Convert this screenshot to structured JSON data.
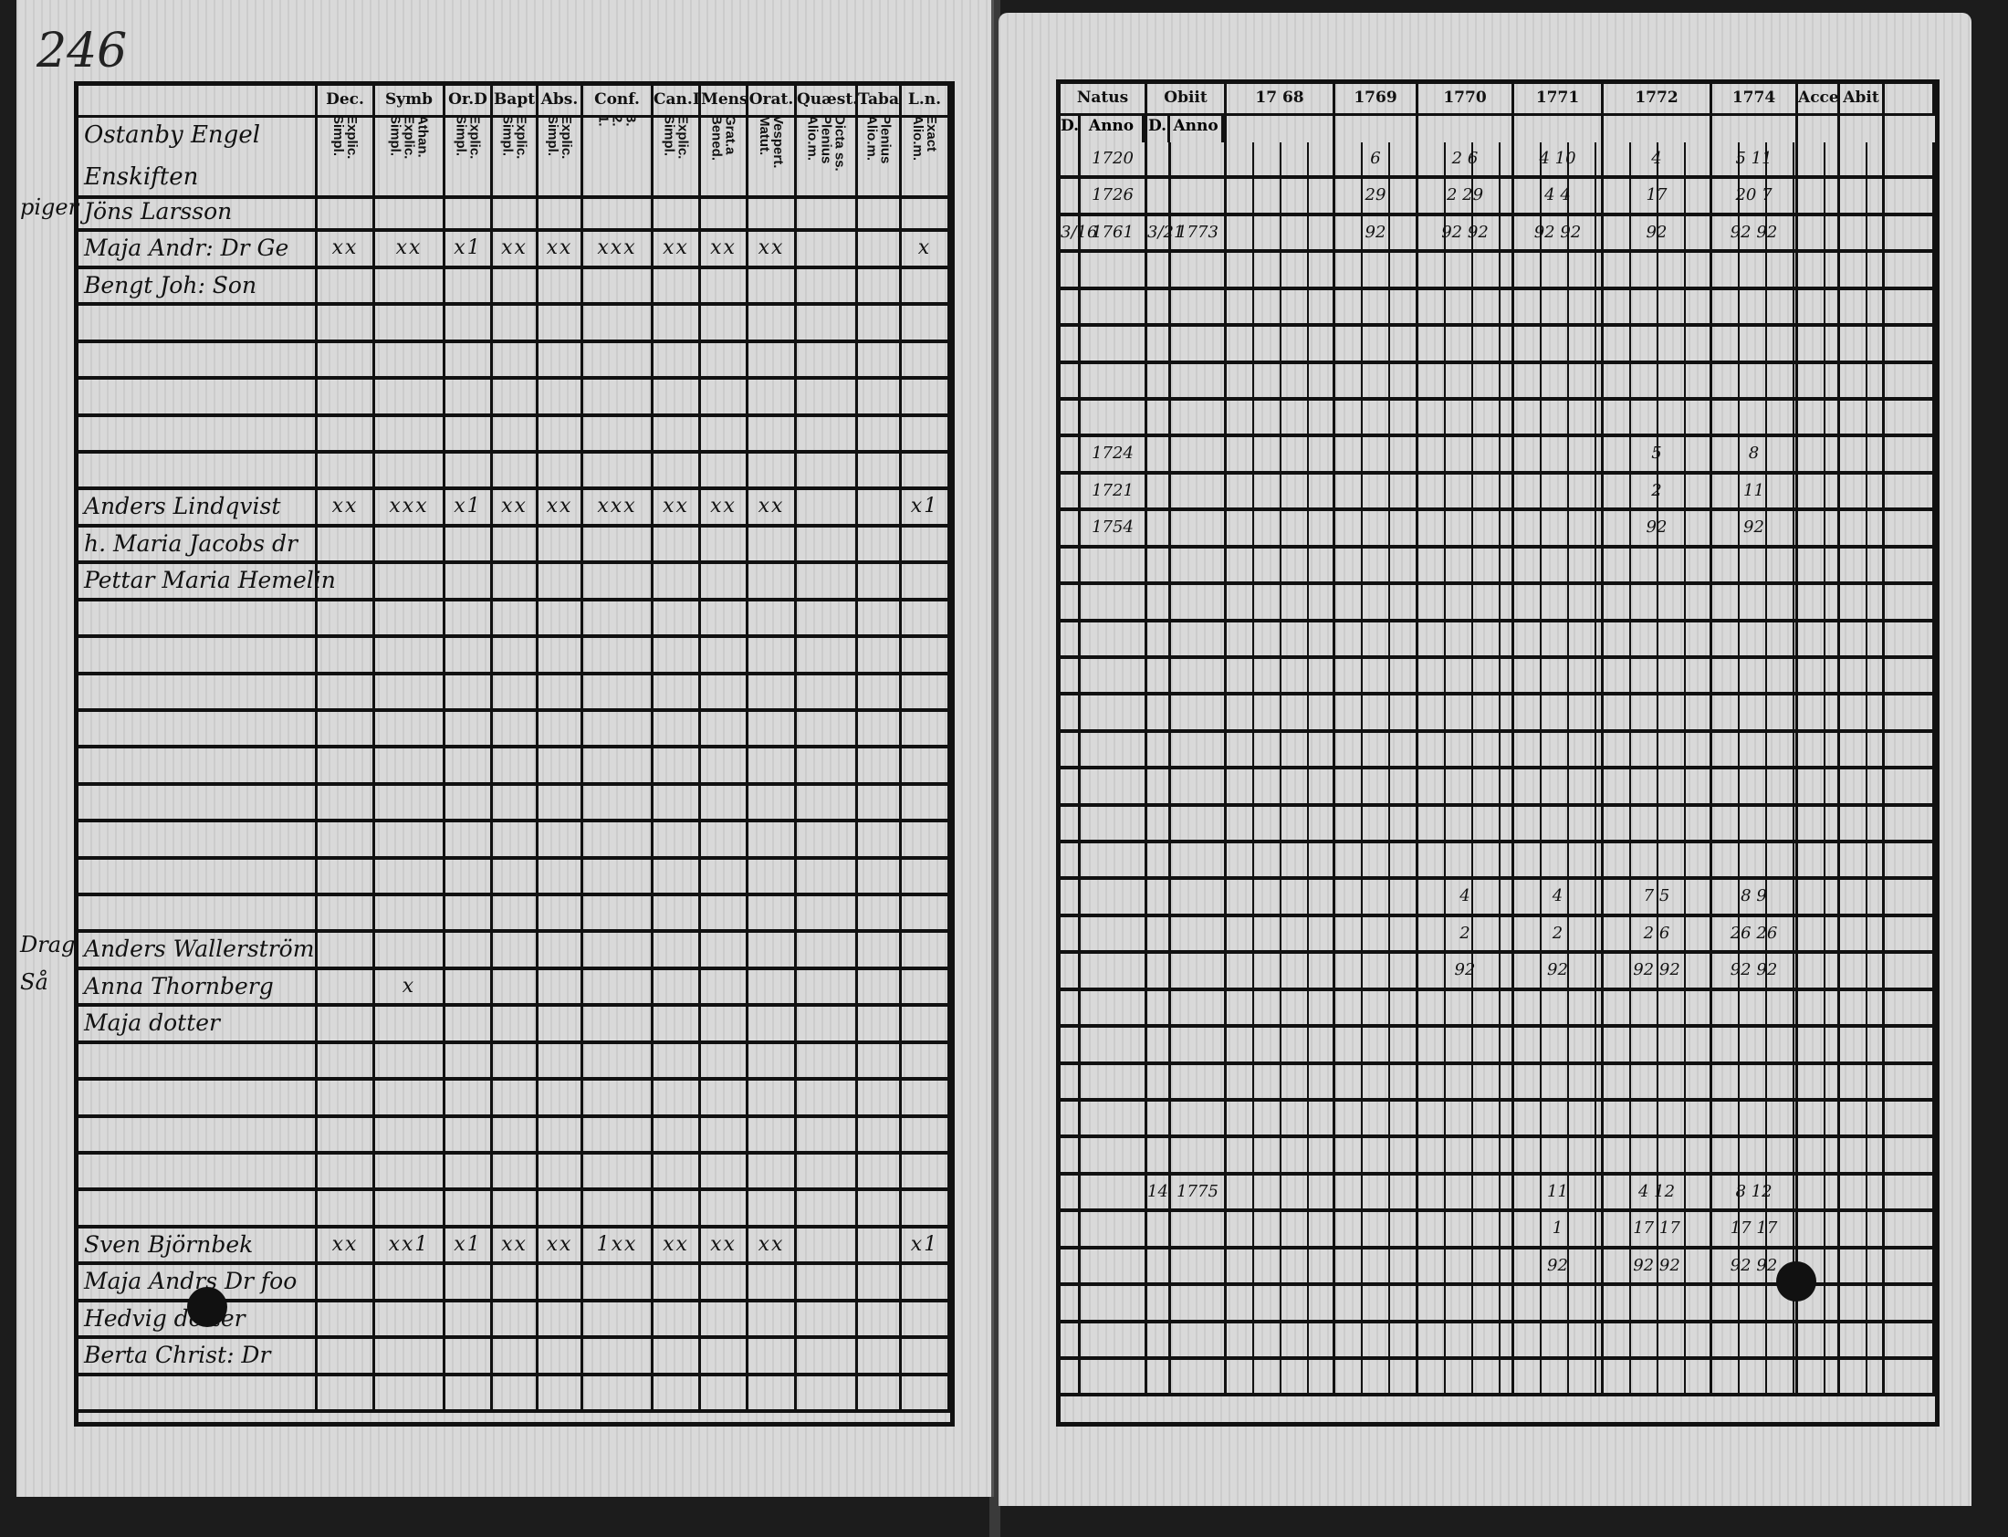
{
  "page_number": "246",
  "left_page": {
    "heading": [
      "Ostanby Engel",
      "Enskiften"
    ],
    "margin_notes": [
      {
        "text": "piger",
        "row": 0
      },
      {
        "text": "Drag",
        "row": 20
      },
      {
        "text": "Så",
        "row": 21
      }
    ],
    "columns": [
      {
        "key": "name",
        "header": "",
        "sub": ""
      },
      {
        "key": "dec",
        "header": "Dec.",
        "sub": "Explic.\nSimpl."
      },
      {
        "key": "symb",
        "header": "Symb",
        "sub": "Athan.\nExplic.\nSimpl."
      },
      {
        "key": "ord",
        "header": "Or.D",
        "sub": "Explic.\nSimpl."
      },
      {
        "key": "bapt",
        "header": "Bapt",
        "sub": "Explic.\nSimpl."
      },
      {
        "key": "abs",
        "header": "Abs.",
        "sub": "Explic.\nSimpl."
      },
      {
        "key": "conf",
        "header": "Conf.",
        "sub": "3.\n2.\n1."
      },
      {
        "key": "cand",
        "header": "Can.D",
        "sub": "Explic.\nSimpl."
      },
      {
        "key": "mens",
        "header": "Mens.",
        "sub": "Grat.a\nBened."
      },
      {
        "key": "orat",
        "header": "Orat.",
        "sub": "Vespert.\nMatut."
      },
      {
        "key": "quaest",
        "header": "Quæst.",
        "sub": "Dicta ss.\nPlenius\nAlio.m."
      },
      {
        "key": "taba",
        "header": "Taba",
        "sub": "Plenius\nAlio.m."
      },
      {
        "key": "ln",
        "header": "L.n.",
        "sub": "Exact\nAlio.m."
      }
    ],
    "entries": [
      {
        "row": 0,
        "name": "Jöns Larsson",
        "marks": {}
      },
      {
        "row": 1,
        "name": "Maja Andr: Dr Ge",
        "marks": {
          "dec": "xx",
          "symb": "xx",
          "ord": "x1",
          "bapt": "xx",
          "abs": "xx",
          "conf": "xxx",
          "cand": "xx",
          "mens": "xx",
          "orat": "xx",
          "ln": "x"
        }
      },
      {
        "row": 2,
        "name": "Bengt Joh: Son",
        "marks": {}
      },
      {
        "row": 8,
        "name": "Anders Lindqvist",
        "marks": {
          "dec": "xx",
          "symb": "xxx",
          "ord": "x1",
          "bapt": "xx",
          "abs": "xx",
          "conf": "xxx",
          "cand": "xx",
          "mens": "xx",
          "orat": "xx",
          "ln": "x1"
        }
      },
      {
        "row": 9,
        "name": "h. Maria Jacobs dr",
        "marks": {}
      },
      {
        "row": 10,
        "name": "Pettar Maria Hemelin",
        "marks": {}
      },
      {
        "row": 20,
        "name": "Anders Wallerström",
        "marks": {}
      },
      {
        "row": 21,
        "name": "Anna Thornberg",
        "marks": {
          "symb": "x"
        }
      },
      {
        "row": 22,
        "name": "Maja dotter",
        "marks": {}
      },
      {
        "row": 28,
        "name": "Sven Björnbek",
        "marks": {
          "dec": "xx",
          "symb": "xx1",
          "ord": "x1",
          "bapt": "xx",
          "abs": "xx",
          "conf": "1xx",
          "cand": "xx",
          "mens": "xx",
          "orat": "xx",
          "ln": "x1"
        }
      },
      {
        "row": 29,
        "name": "Maja Andrs Dr foo",
        "marks": {}
      },
      {
        "row": 30,
        "name": "Hedvig dotter",
        "marks": {}
      },
      {
        "row": 31,
        "name": "Berta Christ: Dr",
        "marks": {}
      }
    ]
  },
  "right_page": {
    "columns": [
      {
        "key": "natus",
        "header": "Natus",
        "subs": [
          "D.",
          "Anno"
        ]
      },
      {
        "key": "obiit",
        "header": "Obiit",
        "subs": [
          "D.",
          "Anno"
        ]
      },
      {
        "key": "y1768",
        "header": "17 68",
        "subs": []
      },
      {
        "key": "y1769",
        "header": "1769",
        "subs": []
      },
      {
        "key": "y1770",
        "header": "1770",
        "subs": []
      },
      {
        "key": "y1771",
        "header": "1771",
        "subs": []
      },
      {
        "key": "y1772",
        "header": "1772",
        "subs": []
      },
      {
        "key": "y1774",
        "header": "1774",
        "subs": []
      },
      {
        "key": "accel",
        "header": "Accel",
        "subs": []
      },
      {
        "key": "abit",
        "header": "Abit",
        "subs": []
      }
    ],
    "entries": [
      {
        "row": 0,
        "cells": {
          "natus_anno": "1720",
          "y1769": "6",
          "y1770": "2 6",
          "y1771": "4  10",
          "y1772": "4",
          "y1774": "5  11"
        }
      },
      {
        "row": 1,
        "cells": {
          "natus_anno": "1726",
          "y1769": "29",
          "y1770": "2 29",
          "y1771": "4  4",
          "y1772": "17",
          "y1774": "20  7"
        }
      },
      {
        "row": 2,
        "cells": {
          "natus_d": "3/16",
          "natus_anno": "1761",
          "obiit_d": "3/21",
          "obiit_anno": "1773",
          "y1769": "92",
          "y1770": "92 92",
          "y1771": "92  92",
          "y1772": "92",
          "y1774": "92  92"
        }
      },
      {
        "row": 8,
        "cells": {
          "natus_anno": "1724",
          "y1772": "5",
          "y1774": "8"
        }
      },
      {
        "row": 9,
        "cells": {
          "natus_anno": "1721",
          "y1772": "2",
          "y1774": "11"
        }
      },
      {
        "row": 10,
        "cells": {
          "natus_anno": "1754",
          "y1772": "92",
          "y1774": "92"
        }
      },
      {
        "row": 20,
        "cells": {
          "y1770": "4",
          "y1771": "4",
          "y1772": "7  5",
          "y1774": "8  9"
        }
      },
      {
        "row": 21,
        "cells": {
          "y1770": "2",
          "y1771": "2",
          "y1772": "2  6",
          "y1774": "26 26"
        }
      },
      {
        "row": 22,
        "cells": {
          "y1770": "92",
          "y1771": "92",
          "y1772": "92 92",
          "y1774": "92 92"
        }
      },
      {
        "row": 28,
        "cells": {
          "obiit_d": "14",
          "obiit_anno": "1775",
          "y1771": "11",
          "y1772": "4  12",
          "y1774": "8  12"
        }
      },
      {
        "row": 29,
        "cells": {
          "y1771": "1",
          "y1772": "17 17",
          "y1774": "17 17"
        }
      },
      {
        "row": 30,
        "cells": {
          "y1771": "92",
          "y1772": "92 92",
          "y1774": "92 92"
        }
      }
    ]
  },
  "colors": {
    "paper": "#d9d9d9",
    "ink": "#111111",
    "background": "#1c1c1c"
  }
}
